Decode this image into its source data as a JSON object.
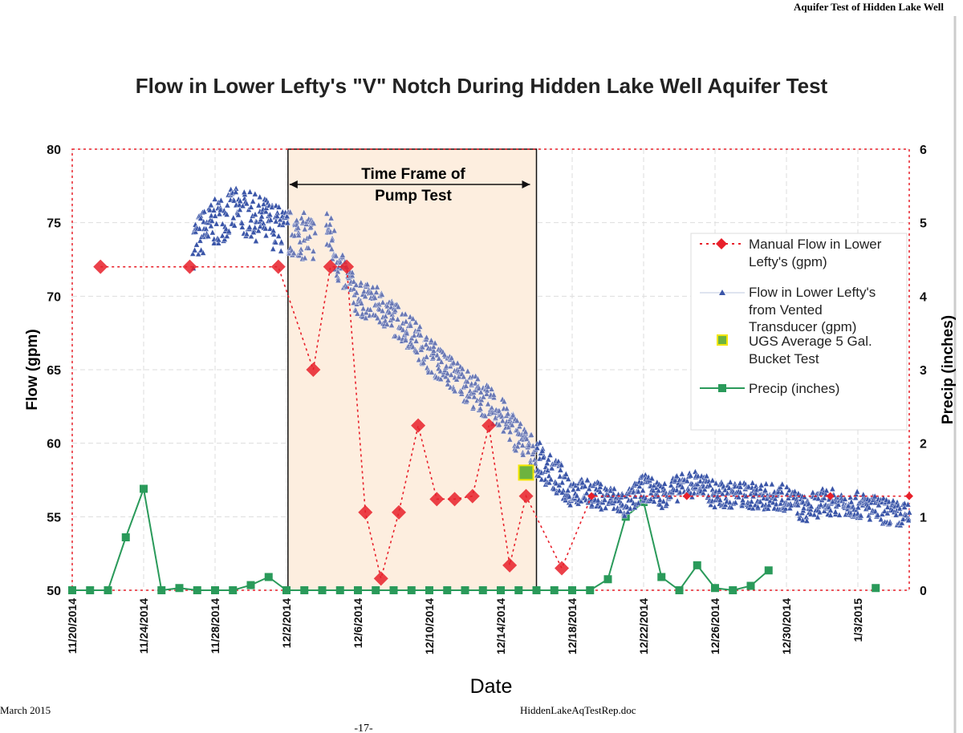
{
  "page": {
    "header": "Aquifer Test of Hidden Lake Well",
    "footer_left": "March 2015",
    "footer_center": "HiddenLakeAqTestRep.doc",
    "page_number": "-17-"
  },
  "chart_data": {
    "type": "line",
    "title": "Flow in Lower Lefty's \"V\" Notch During Hidden Lake Well Aquifer Test",
    "xlabel": "Date",
    "ylabel": "Flow (gpm)",
    "y2label": "Precip (inches)",
    "xlim": [
      "2014-11-20 00:00",
      "2015-01-05 21:00"
    ],
    "ylim": [
      50,
      80
    ],
    "y2lim": [
      0,
      6
    ],
    "x_ticks": [
      "11/20/2014",
      "11/24/2014",
      "11/28/2014",
      "12/2/2014",
      "12/6/2014",
      "12/10/2014",
      "12/14/2014",
      "12/18/2014",
      "12/22/2014",
      "12/26/2014",
      "12/30/2014",
      "1/3/2015"
    ],
    "x_tick_dates": [
      "2014-11-20",
      "2014-11-24",
      "2014-11-28",
      "2014-12-02",
      "2014-12-06",
      "2014-12-10",
      "2014-12-14",
      "2014-12-18",
      "2014-12-22",
      "2014-12-26",
      "2014-12-30",
      "2015-01-03"
    ],
    "y_ticks": [
      "50",
      "55",
      "60",
      "65",
      "70",
      "75",
      "80"
    ],
    "y2_ticks": [
      "0",
      "1",
      "2",
      "3",
      "4",
      "5",
      "6"
    ],
    "grid": true,
    "legend_position": "right",
    "annotation": {
      "line1": "Time Frame of",
      "line2": "Pump Test",
      "start": "2014-12-02 02:00",
      "end": "2014-12-16 00:00",
      "fill": "#fdeedf"
    },
    "series": [
      {
        "name": "Manual Flow in Lower Lefty's (gpm)",
        "legend_lines": [
          "Manual Flow in Lower",
          "Lefty's (gpm)"
        ],
        "axis": "left",
        "color": "#e8202a",
        "marker": "diamond",
        "line": "dotted",
        "points": [
          [
            "2014-11-21 14:00",
            72
          ],
          [
            "2014-11-26 14:00",
            72
          ],
          [
            "2014-12-01 13:00",
            72
          ],
          [
            "2014-12-03 12:00",
            65
          ],
          [
            "2014-12-04 11:00",
            72
          ],
          [
            "2014-12-05 09:00",
            72
          ],
          [
            "2014-12-06 10:00",
            55.3
          ],
          [
            "2014-12-07 07:00",
            50.8
          ],
          [
            "2014-12-08 07:00",
            55.3
          ],
          [
            "2014-12-09 09:00",
            61.2
          ],
          [
            "2014-12-10 10:00",
            56.2
          ],
          [
            "2014-12-11 10:00",
            56.2
          ],
          [
            "2014-12-12 10:00",
            56.4
          ],
          [
            "2014-12-13 08:00",
            61.2
          ],
          [
            "2014-12-14 12:00",
            51.7
          ],
          [
            "2014-12-15 10:00",
            56.4
          ],
          [
            "2014-12-17 10:00",
            51.5
          ],
          [
            "2014-12-19 02:00",
            56.4
          ],
          [
            "2014-12-24 10:00",
            56.4
          ],
          [
            "2015-01-01 11:00",
            56.4
          ],
          [
            "2015-01-05 21:00",
            56.4
          ]
        ]
      },
      {
        "name": "Flow in Lower Lefty's from Vented Transducer (gpm)",
        "legend_lines": [
          "Flow in Lower Lefty's",
          "from Vented",
          "Transducer (gpm)"
        ],
        "axis": "left",
        "color": "#3a55a8",
        "marker": "triangle",
        "points": [
          [
            "2014-11-26 18:00",
            73.5
          ],
          [
            "2014-11-27 00:00",
            74
          ],
          [
            "2014-11-28 00:00",
            75
          ],
          [
            "2014-11-29 00:00",
            75.8
          ],
          [
            "2014-11-30 00:00",
            75.5
          ],
          [
            "2014-12-01 00:00",
            75
          ],
          [
            "2014-12-02 00:00",
            74.3
          ],
          [
            "2014-12-03 12:00",
            74
          ],
          [
            "2014-12-04 08:00",
            74.5
          ],
          [
            "2014-12-05 00:00",
            72
          ],
          [
            "2014-12-06 00:00",
            69.8
          ],
          [
            "2014-12-07 00:00",
            69.5
          ],
          [
            "2014-12-08 00:00",
            68.5
          ],
          [
            "2014-12-09 00:00",
            67.5
          ],
          [
            "2014-12-10 00:00",
            66
          ],
          [
            "2014-12-11 00:00",
            65
          ],
          [
            "2014-12-12 00:00",
            64
          ],
          [
            "2014-12-13 00:00",
            63
          ],
          [
            "2014-12-14 00:00",
            62
          ],
          [
            "2014-12-15 00:00",
            60.5
          ],
          [
            "2014-12-16 00:00",
            59
          ],
          [
            "2014-12-17 00:00",
            57.8
          ],
          [
            "2014-12-18 00:00",
            56.8
          ],
          [
            "2014-12-19 00:00",
            56.6
          ],
          [
            "2014-12-20 00:00",
            56.3
          ],
          [
            "2014-12-21 00:00",
            55.8
          ],
          [
            "2014-12-22 00:00",
            57
          ],
          [
            "2014-12-23 00:00",
            56.5
          ],
          [
            "2014-12-24 00:00",
            57
          ],
          [
            "2014-12-25 00:00",
            57.3
          ],
          [
            "2014-12-26 00:00",
            56.5
          ],
          [
            "2014-12-27 00:00",
            56.5
          ],
          [
            "2014-12-30 00:00",
            56.3
          ],
          [
            "2014-12-31 00:00",
            55.5
          ],
          [
            "2015-01-01 00:00",
            56
          ],
          [
            "2015-01-02 00:00",
            56
          ],
          [
            "2015-01-03 00:00",
            55.8
          ],
          [
            "2015-01-05 21:00",
            55
          ]
        ]
      },
      {
        "name": "UGS Average 5 Gal. Bucket Test",
        "legend_lines": [
          "UGS Average 5 Gal.",
          "Bucket Test"
        ],
        "axis": "left",
        "color": "#6db33f",
        "edge_color": "#f2e600",
        "marker": "square",
        "points": [
          [
            "2014-12-15 10:00",
            58
          ]
        ]
      },
      {
        "name": "Precip (inches)",
        "legend_lines": [
          "Precip (inches)"
        ],
        "axis": "right",
        "color": "#2a9a5a",
        "marker": "square",
        "line": "solid",
        "points": [
          [
            "2014-11-20",
            0
          ],
          [
            "2014-11-21",
            0
          ],
          [
            "2014-11-22",
            0
          ],
          [
            "2014-11-23",
            0.72
          ],
          [
            "2014-11-24",
            1.38
          ],
          [
            "2014-11-25",
            0
          ],
          [
            "2014-11-26",
            0.03
          ],
          [
            "2014-11-27",
            0
          ],
          [
            "2014-11-28",
            0
          ],
          [
            "2014-11-29",
            0
          ],
          [
            "2014-11-30",
            0.07
          ],
          [
            "2014-12-01",
            0.18
          ],
          [
            "2014-12-02",
            0
          ],
          [
            "2014-12-03",
            0
          ],
          [
            "2014-12-04",
            0
          ],
          [
            "2014-12-05",
            0
          ],
          [
            "2014-12-06",
            0
          ],
          [
            "2014-12-07",
            0
          ],
          [
            "2014-12-08",
            0
          ],
          [
            "2014-12-09",
            0
          ],
          [
            "2014-12-10",
            0
          ],
          [
            "2014-12-11",
            0
          ],
          [
            "2014-12-12",
            0
          ],
          [
            "2014-12-13",
            0
          ],
          [
            "2014-12-14",
            0
          ],
          [
            "2014-12-15",
            0
          ],
          [
            "2014-12-16",
            0
          ],
          [
            "2014-12-17",
            0
          ],
          [
            "2014-12-18",
            0
          ],
          [
            "2014-12-19",
            0
          ],
          [
            "2014-12-20",
            0.15
          ],
          [
            "2014-12-21",
            1.0
          ],
          [
            "2014-12-22",
            1.2
          ],
          [
            "2014-12-23",
            0.18
          ],
          [
            "2014-12-24",
            0
          ],
          [
            "2014-12-25",
            0.34
          ],
          [
            "2014-12-26",
            0.03
          ],
          [
            "2014-12-27",
            0
          ],
          [
            "2014-12-28",
            0.06
          ],
          [
            "2014-12-29",
            0.27
          ]
        ],
        "extra_points": [
          [
            "2015-01-04",
            0.03
          ]
        ]
      }
    ]
  }
}
